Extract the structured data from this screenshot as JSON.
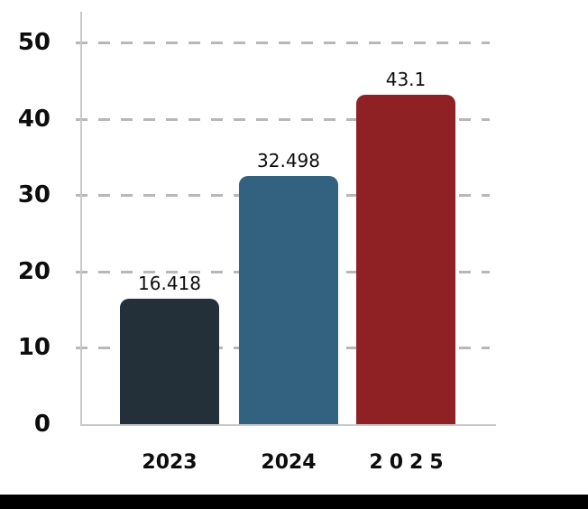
{
  "chart_data": {
    "type": "bar",
    "categories": [
      "2023",
      "2024",
      "2025"
    ],
    "values": [
      16.418,
      32.498,
      43.1
    ],
    "value_labels": [
      "16.418",
      "32.498",
      "43.1"
    ],
    "series_name": "",
    "bar_colors": [
      "#232f39",
      "#336180",
      "#8f2125"
    ],
    "yticks": [
      0,
      10,
      20,
      30,
      40,
      50
    ],
    "ytick_labels": [
      "0",
      "10",
      "20",
      "30",
      "40",
      "50"
    ],
    "ylim": [
      0,
      50
    ],
    "title": "",
    "xlabel": "",
    "ylabel": "",
    "grid": "horizontal-dashed",
    "legend": "none"
  },
  "colors": {
    "background": "#ffffff",
    "axis_line": "#c9c9c9",
    "gridline": "#b8b8b8",
    "label_text": "#0d0d0d",
    "footer_bar": "#000000"
  }
}
